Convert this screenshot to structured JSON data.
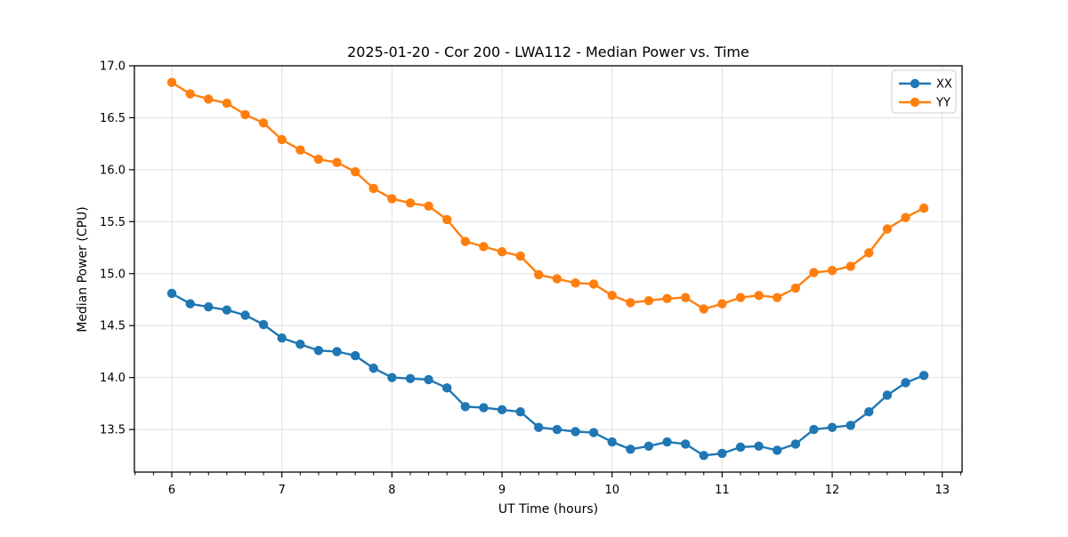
{
  "chart_data": {
    "type": "line",
    "title": "2025-01-20 - Cor 200 - LWA112 - Median Power vs. Time",
    "xlabel": "UT Time (hours)",
    "ylabel": "Median Power (CPU)",
    "xlim": [
      5.66,
      13.18
    ],
    "ylim": [
      13.09,
      17.0
    ],
    "x_ticks": [
      6,
      7,
      8,
      9,
      10,
      11,
      12,
      13
    ],
    "x_minor_per_major": 6,
    "y_ticks": [
      13.5,
      14.0,
      14.5,
      15.0,
      15.5,
      16.0,
      16.5,
      17.0
    ],
    "grid": true,
    "legend_position": "upper right",
    "background_color": "#ffffff",
    "grid_color": "#e0e0e0",
    "axis_color": "#000000",
    "x": [
      6.0,
      6.167,
      6.333,
      6.5,
      6.667,
      6.833,
      7.0,
      7.167,
      7.333,
      7.5,
      7.667,
      7.833,
      8.0,
      8.167,
      8.333,
      8.5,
      8.667,
      8.833,
      9.0,
      9.167,
      9.333,
      9.5,
      9.667,
      9.833,
      10.0,
      10.167,
      10.333,
      10.5,
      10.667,
      10.833,
      11.0,
      11.167,
      11.333,
      11.5,
      11.667,
      11.833,
      12.0,
      12.167,
      12.333,
      12.5,
      12.667,
      12.833
    ],
    "series": [
      {
        "name": "XX",
        "color": "#1f77b4",
        "values": [
          14.81,
          14.71,
          14.68,
          14.65,
          14.6,
          14.51,
          14.38,
          14.32,
          14.26,
          14.25,
          14.21,
          14.09,
          14.0,
          13.99,
          13.98,
          13.9,
          13.72,
          13.71,
          13.69,
          13.67,
          13.52,
          13.5,
          13.48,
          13.47,
          13.38,
          13.31,
          13.34,
          13.38,
          13.36,
          13.25,
          13.27,
          13.33,
          13.34,
          13.3,
          13.36,
          13.5,
          13.52,
          13.54,
          13.67,
          13.83,
          13.95,
          14.02
        ]
      },
      {
        "name": "YY",
        "color": "#ff7f0e",
        "values": [
          16.84,
          16.73,
          16.68,
          16.64,
          16.53,
          16.45,
          16.29,
          16.19,
          16.1,
          16.07,
          15.98,
          15.82,
          15.72,
          15.68,
          15.65,
          15.52,
          15.31,
          15.26,
          15.21,
          15.17,
          14.99,
          14.95,
          14.91,
          14.9,
          14.79,
          14.72,
          14.74,
          14.76,
          14.77,
          14.66,
          14.71,
          14.77,
          14.79,
          14.77,
          14.86,
          15.01,
          15.03,
          15.07,
          15.2,
          15.43,
          15.54,
          15.63
        ]
      }
    ]
  }
}
